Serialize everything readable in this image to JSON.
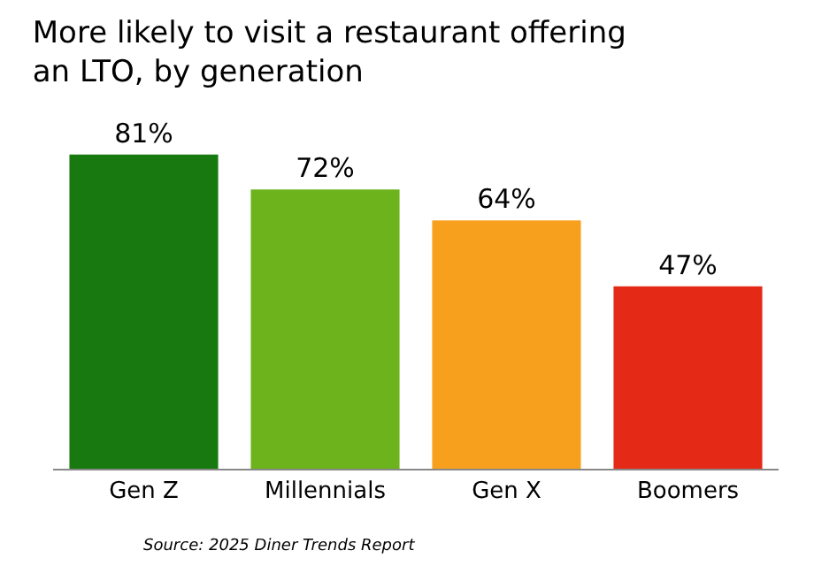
{
  "chart_data": {
    "type": "bar",
    "title": "More likely to visit a restaurant offering\nan LTO, by generation",
    "categories": [
      "Gen Z",
      "Millennials",
      "Gen X",
      "Boomers"
    ],
    "values": [
      81,
      72,
      64,
      47
    ],
    "colors": [
      "#17790f",
      "#6cb31c",
      "#f7a01e",
      "#e42a17"
    ],
    "value_labels": [
      "81%",
      "72%",
      "64%",
      "47%"
    ],
    "annotations": [
      "Source: 2025 Diner Trends Report"
    ],
    "tick_labels": "x",
    "legend": false
  }
}
